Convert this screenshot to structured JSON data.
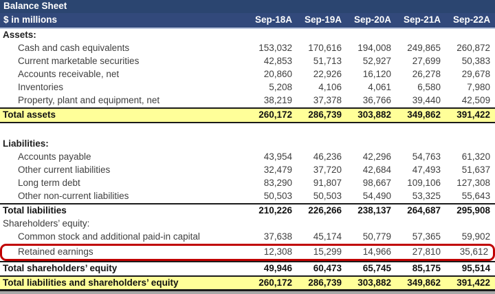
{
  "header": {
    "title": "Balance Sheet",
    "subtitle": "$ in millions",
    "columns": [
      "Sep-18A",
      "Sep-19A",
      "Sep-20A",
      "Sep-21A",
      "Sep-22A"
    ]
  },
  "colors": {
    "header_bg": "#2E4A7A",
    "header_text": "#FFFFFF",
    "header_accent_border": "#B7C3DC",
    "total_highlight": "#FFFF99",
    "callout_box": "#C00000",
    "body_text": "#3F3F3F",
    "subtotal_line": "#1A1A1A"
  },
  "annotation": {
    "type": "red-callout-box",
    "highlighted_row": "Retained earnings"
  },
  "rows": [
    {
      "name": "row-assets-section",
      "style": "section-bold",
      "label": "Assets:",
      "values": [
        "",
        "",
        "",
        "",
        ""
      ]
    },
    {
      "name": "row-cash-and-cash-equivalents",
      "style": "item",
      "label": "Cash and cash equivalents",
      "values": [
        "153,032",
        "170,616",
        "194,008",
        "249,865",
        "260,872"
      ]
    },
    {
      "name": "row-current-marketable-securities",
      "style": "item",
      "label": "Current marketable securities",
      "values": [
        "42,853",
        "51,713",
        "52,927",
        "27,699",
        "50,383"
      ]
    },
    {
      "name": "row-accounts-receivable-net",
      "style": "item",
      "label": "Accounts receivable, net",
      "values": [
        "20,860",
        "22,926",
        "16,120",
        "26,278",
        "29,678"
      ]
    },
    {
      "name": "row-inventories",
      "style": "item",
      "label": "Inventories",
      "values": [
        "5,208",
        "4,106",
        "4,061",
        "6,580",
        "7,980"
      ]
    },
    {
      "name": "row-property-plant-equipment-net",
      "style": "item",
      "label": "Property, plant and equipment, net",
      "values": [
        "38,219",
        "37,378",
        "36,766",
        "39,440",
        "42,509"
      ]
    },
    {
      "name": "row-total-assets",
      "style": "total-yellow",
      "label": "Total assets",
      "values": [
        "260,172",
        "286,739",
        "303,882",
        "349,862",
        "391,422"
      ]
    },
    {
      "name": "row-spacer",
      "style": "blank",
      "label": "",
      "values": [
        "",
        "",
        "",
        "",
        ""
      ]
    },
    {
      "name": "row-liabilities-section",
      "style": "section-bold",
      "label": "Liabilities:",
      "values": [
        "",
        "",
        "",
        "",
        ""
      ]
    },
    {
      "name": "row-accounts-payable",
      "style": "item",
      "label": "Accounts payable",
      "values": [
        "43,954",
        "46,236",
        "42,296",
        "54,763",
        "61,320"
      ]
    },
    {
      "name": "row-other-current-liabilities",
      "style": "item",
      "label": "Other current liabilities",
      "values": [
        "32,479",
        "37,720",
        "42,684",
        "47,493",
        "51,637"
      ]
    },
    {
      "name": "row-long-term-debt",
      "style": "item",
      "label": "Long term debt",
      "values": [
        "83,290",
        "91,807",
        "98,667",
        "109,106",
        "127,308"
      ]
    },
    {
      "name": "row-other-non-current-liabilities",
      "style": "item",
      "label": "Other non-current liabilities",
      "values": [
        "50,503",
        "50,503",
        "54,490",
        "53,325",
        "55,643"
      ]
    },
    {
      "name": "row-total-liabilities",
      "style": "total",
      "label": "Total liabilities",
      "values": [
        "210,226",
        "226,266",
        "238,137",
        "264,687",
        "295,908"
      ]
    },
    {
      "name": "row-shareholders-equity-section",
      "style": "section",
      "label": "Shareholders’ equity:",
      "values": [
        "",
        "",
        "",
        "",
        ""
      ]
    },
    {
      "name": "row-common-stock-apic",
      "style": "item",
      "label": "Common stock and additional paid-in capital",
      "values": [
        "37,638",
        "45,174",
        "50,779",
        "57,365",
        "59,902"
      ]
    },
    {
      "name": "row-retained-earnings",
      "style": "item-boxed",
      "label": "Retained earnings",
      "values": [
        "12,308",
        "15,299",
        "14,966",
        "27,810",
        "35,612"
      ]
    },
    {
      "name": "row-total-shareholders-equity",
      "style": "total",
      "label": "Total shareholders’ equity",
      "values": [
        "49,946",
        "60,473",
        "65,745",
        "85,175",
        "95,514"
      ]
    },
    {
      "name": "row-total-liabilities-and-shareholders-equity",
      "style": "total-yellow-final",
      "label": "Total liabilities and shareholders’ equity",
      "values": [
        "260,172",
        "286,739",
        "303,882",
        "349,862",
        "391,422"
      ]
    }
  ]
}
